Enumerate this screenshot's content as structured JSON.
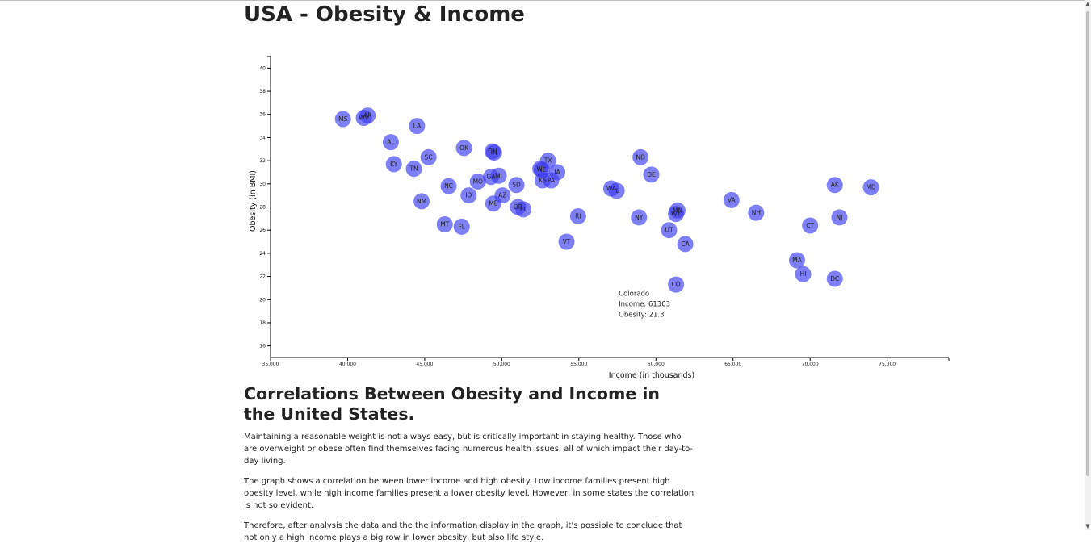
{
  "page": {
    "title": "USA - Obesity & Income"
  },
  "article": {
    "heading": "Correlations Between Obesity and Income in the United States.",
    "paragraphs": [
      "Maintaining a reasonable weight is not always easy, but is critically important in staying healthy. Those who are overweight or obese often find themselves facing numerous health issues, all of which impact their day-to-day living.",
      "The graph shows a correlation between lower income and high obesity. Low income families present high obesity level, while high income families present a lower obesity level. However, in some states the correlation is not so evident.",
      "Therefore, after analysis the data and the the information display in the graph, it's possible to conclude that not only a high income plays a big row in lower obesity, but also life style."
    ]
  },
  "chart_data": {
    "type": "scatter",
    "xlabel": "Income (in thousands)",
    "ylabel": "Obesity (in BMI)",
    "xlim": [
      35000,
      79000
    ],
    "ylim": [
      15,
      41
    ],
    "xticks": [
      35000,
      40000,
      45000,
      50000,
      55000,
      60000,
      65000,
      70000,
      75000
    ],
    "xtick_labels": [
      "35,000",
      "40,000",
      "45,000",
      "50,000",
      "55,000",
      "60,000",
      "65,000",
      "70,000",
      "75,000"
    ],
    "yticks": [
      16,
      18,
      20,
      22,
      24,
      26,
      28,
      30,
      32,
      34,
      36,
      38,
      40
    ],
    "grid": false,
    "legend": "none",
    "point_color": "#3b3bf0",
    "points": [
      {
        "abbr": "MS",
        "x": 39700,
        "y": 35.6
      },
      {
        "abbr": "WV",
        "x": 41050,
        "y": 35.7
      },
      {
        "abbr": "AR",
        "x": 41300,
        "y": 35.9
      },
      {
        "abbr": "LA",
        "x": 44500,
        "y": 35.0
      },
      {
        "abbr": "AL",
        "x": 42800,
        "y": 33.6
      },
      {
        "abbr": "KY",
        "x": 43000,
        "y": 31.7
      },
      {
        "abbr": "TN",
        "x": 44300,
        "y": 31.3
      },
      {
        "abbr": "SC",
        "x": 45250,
        "y": 32.3
      },
      {
        "abbr": "OK",
        "x": 47550,
        "y": 33.1
      },
      {
        "abbr": "OH",
        "x": 49400,
        "y": 32.8
      },
      {
        "abbr": "IN",
        "x": 49500,
        "y": 32.7
      },
      {
        "abbr": "NM",
        "x": 44800,
        "y": 28.5
      },
      {
        "abbr": "NC",
        "x": 46550,
        "y": 29.8
      },
      {
        "abbr": "ID",
        "x": 47850,
        "y": 29.0
      },
      {
        "abbr": "MO",
        "x": 48450,
        "y": 30.2
      },
      {
        "abbr": "GA",
        "x": 49300,
        "y": 30.6
      },
      {
        "abbr": "MI",
        "x": 49800,
        "y": 30.7
      },
      {
        "abbr": "SD",
        "x": 50950,
        "y": 29.9
      },
      {
        "abbr": "AZ",
        "x": 50050,
        "y": 29.0
      },
      {
        "abbr": "ME",
        "x": 49450,
        "y": 28.3
      },
      {
        "abbr": "OR",
        "x": 51050,
        "y": 28.0
      },
      {
        "abbr": "FL",
        "x": 51400,
        "y": 27.8
      },
      {
        "abbr": "MT",
        "x": 46300,
        "y": 26.5
      },
      {
        "abbr": "FL",
        "x": 47400,
        "y": 26.3
      },
      {
        "abbr": "TX",
        "x": 53000,
        "y": 32.0
      },
      {
        "abbr": "WI",
        "x": 52500,
        "y": 31.3
      },
      {
        "abbr": "NE",
        "x": 52600,
        "y": 31.2
      },
      {
        "abbr": "IA",
        "x": 53600,
        "y": 31.0
      },
      {
        "abbr": "KS",
        "x": 52650,
        "y": 30.3
      },
      {
        "abbr": "PA",
        "x": 53200,
        "y": 30.3
      },
      {
        "abbr": "WA",
        "x": 57100,
        "y": 29.6
      },
      {
        "abbr": "IL",
        "x": 57450,
        "y": 29.4
      },
      {
        "abbr": "RI",
        "x": 54950,
        "y": 27.2
      },
      {
        "abbr": "VT",
        "x": 54200,
        "y": 25.0
      },
      {
        "abbr": "ND",
        "x": 59000,
        "y": 32.3
      },
      {
        "abbr": "DE",
        "x": 59700,
        "y": 30.8
      },
      {
        "abbr": "NY",
        "x": 58900,
        "y": 27.1
      },
      {
        "abbr": "MN",
        "x": 61400,
        "y": 27.7
      },
      {
        "abbr": "WY",
        "x": 61300,
        "y": 27.4
      },
      {
        "abbr": "UT",
        "x": 60850,
        "y": 26.0
      },
      {
        "abbr": "CA",
        "x": 61900,
        "y": 24.8
      },
      {
        "abbr": "CO",
        "x": 61303,
        "y": 21.3
      },
      {
        "abbr": "VA",
        "x": 64900,
        "y": 28.6
      },
      {
        "abbr": "NH",
        "x": 66500,
        "y": 27.5
      },
      {
        "abbr": "CT",
        "x": 70000,
        "y": 26.4
      },
      {
        "abbr": "NJ",
        "x": 71900,
        "y": 27.1
      },
      {
        "abbr": "AK",
        "x": 71600,
        "y": 29.9
      },
      {
        "abbr": "MD",
        "x": 73950,
        "y": 29.7
      },
      {
        "abbr": "MA",
        "x": 69150,
        "y": 23.4
      },
      {
        "abbr": "HI",
        "x": 69550,
        "y": 22.2
      },
      {
        "abbr": "DC",
        "x": 71600,
        "y": 21.8
      }
    ],
    "tooltip": {
      "anchor_abbr": "CO",
      "lines": [
        "Colorado",
        "Income: 61303",
        "Obesity: 21.3"
      ]
    }
  },
  "scrollbar": {
    "up_glyph": "▲",
    "down_glyph": "▼"
  }
}
